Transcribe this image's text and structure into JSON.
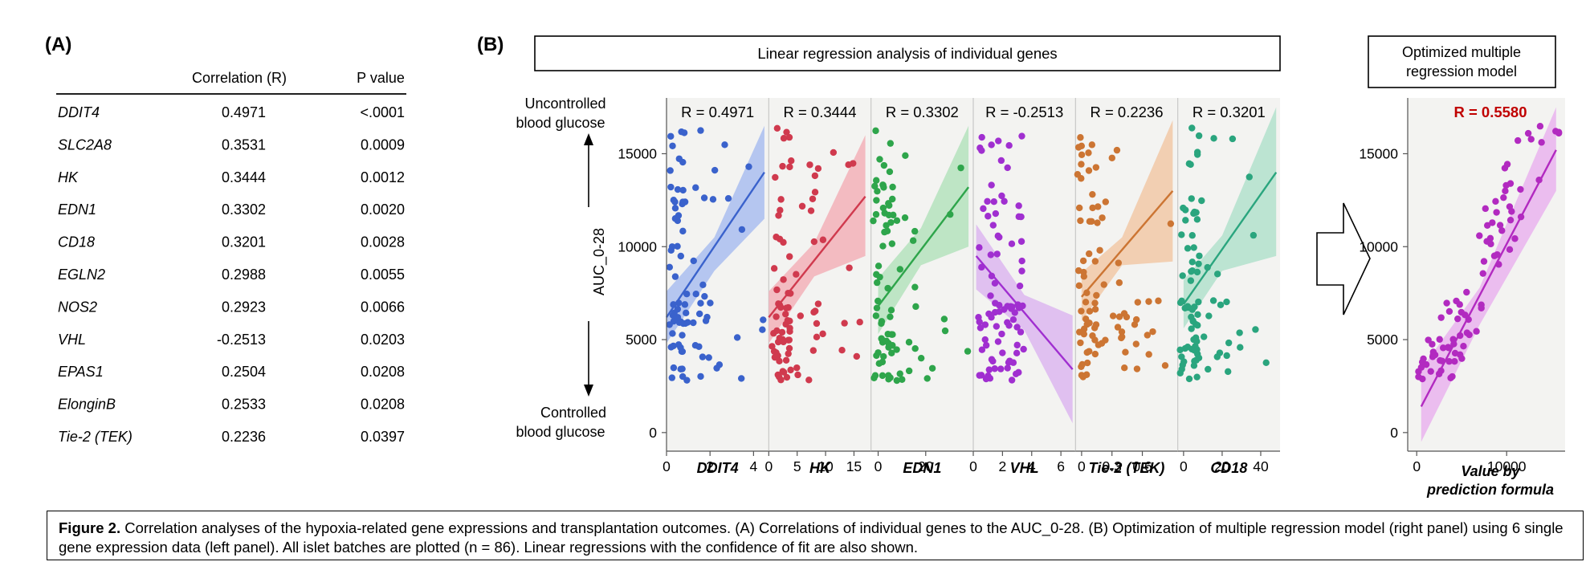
{
  "panel_a": {
    "label": "(A)",
    "headers": [
      "Correlation (R)",
      "P value"
    ],
    "rows": [
      {
        "gene": "DDIT4",
        "r": "0.4971",
        "p": "<.0001"
      },
      {
        "gene": "SLC2A8",
        "r": "0.3531",
        "p": "0.0009"
      },
      {
        "gene": "HK",
        "r": "0.3444",
        "p": "0.0012"
      },
      {
        "gene": "EDN1",
        "r": "0.3302",
        "p": "0.0020"
      },
      {
        "gene": "CD18",
        "r": "0.3201",
        "p": "0.0028"
      },
      {
        "gene": "EGLN2",
        "r": "0.2988",
        "p": "0.0055"
      },
      {
        "gene": "NOS2",
        "r": "0.2923",
        "p": "0.0066"
      },
      {
        "gene": "VHL",
        "r": "-0.2513",
        "p": "0.0203"
      },
      {
        "gene": "EPAS1",
        "r": "0.2504",
        "p": "0.0208"
      },
      {
        "gene": "ElonginB",
        "r": "0.2533",
        "p": "0.0208"
      },
      {
        "gene": "Tie-2 (TEK)",
        "r": "0.2236",
        "p": "0.0397"
      }
    ]
  },
  "panel_b": {
    "label": "(B)",
    "box_title": "Linear regression analysis of individual genes",
    "right_box_line1": "Optimized multiple",
    "right_box_line2": "regression model",
    "y_top_line1": "Uncontrolled",
    "y_top_line2": "blood glucose",
    "y_bottom_line1": "Controlled",
    "y_bottom_line2": "blood glucose",
    "right_xlabel_line1": "Value by",
    "right_xlabel_line2": "prediction formula"
  },
  "caption": {
    "bold": "Figure 2.",
    "text": " Correlation analyses of the hypoxia-related gene expressions and transplantation outcomes. (A) Correlations of individual genes to the AUC_0-28. (B) Optimization of multiple regression model (right panel) using 6 single gene expression data (left panel). All islet batches are plotted (n = 86). Linear regressions with the confidence of fit are also shown."
  },
  "chart_data": [
    {
      "type": "scatter",
      "ylabel": "AUC_0-28",
      "ylim": [
        -1000,
        18000
      ],
      "yticks": [
        "0",
        "5000",
        "10000",
        "15000"
      ],
      "ytick_values": [
        0,
        5000,
        10000,
        15000
      ],
      "grid": false,
      "panels": [
        {
          "name": "DDIT4",
          "r_label": "R = 0.4971",
          "color": "#3a62cc",
          "band": "#a9bdf0",
          "xlim": [
            0,
            4.7
          ],
          "xticks": [
            "0",
            "2",
            "4"
          ],
          "xtick_values": [
            0,
            2,
            4
          ],
          "fit": [
            [
              0,
              6200
            ],
            [
              4.5,
              14000
            ]
          ],
          "band_lo": [
            [
              0,
              4800
            ],
            [
              2.2,
              8700
            ],
            [
              4.5,
              11500
            ]
          ],
          "band_hi": [
            [
              0,
              7600
            ],
            [
              2.2,
              10500
            ],
            [
              4.5,
              16500
            ]
          ]
        },
        {
          "name": "HK",
          "r_label": "R = 0.3444",
          "color": "#d03a4e",
          "band": "#f2b0b8",
          "xlim": [
            0,
            18
          ],
          "xticks": [
            "0",
            "5",
            "10",
            "15"
          ],
          "xtick_values": [
            0,
            5,
            10,
            15
          ],
          "fit": [
            [
              0,
              6200
            ],
            [
              17,
              12700
            ]
          ],
          "band_lo": [
            [
              0,
              4800
            ],
            [
              8,
              8400
            ],
            [
              17,
              9500
            ]
          ],
          "band_hi": [
            [
              0,
              7600
            ],
            [
              8,
              10200
            ],
            [
              17,
              16000
            ]
          ]
        },
        {
          "name": "EDN1",
          "r_label": "R = 0.3302",
          "color": "#2ea54b",
          "band": "#b4e2bd",
          "xlim": [
            -3,
            40
          ],
          "xticks": [
            "0",
            "20"
          ],
          "xtick_values": [
            0,
            20
          ],
          "fit": [
            [
              0,
              6800
            ],
            [
              38,
              13200
            ]
          ],
          "band_lo": [
            [
              0,
              5300
            ],
            [
              18,
              9000
            ],
            [
              38,
              10000
            ]
          ],
          "band_hi": [
            [
              0,
              8300
            ],
            [
              18,
              11000
            ],
            [
              38,
              16500
            ]
          ]
        },
        {
          "name": "VHL",
          "r_label": "R = -0.2513",
          "color": "#a02fd0",
          "band": "#dcb6f0",
          "xlim": [
            0,
            7
          ],
          "xticks": [
            "0",
            "2",
            "4",
            "6"
          ],
          "xtick_values": [
            0,
            2,
            4,
            6
          ],
          "fit": [
            [
              0.2,
              9500
            ],
            [
              6.8,
              3400
            ]
          ],
          "band_lo": [
            [
              0.2,
              7700
            ],
            [
              3.5,
              5500
            ],
            [
              6.8,
              500
            ]
          ],
          "band_hi": [
            [
              0.2,
              11200
            ],
            [
              3.5,
              7400
            ],
            [
              6.8,
              6300
            ]
          ]
        },
        {
          "name": "Tie-2 (TEK)",
          "r_label": "R = 0.2236",
          "color": "#cc7533",
          "band": "#f1c8a7",
          "xlim": [
            -0.06,
            0.95
          ],
          "xticks": [
            "0",
            "0.3",
            "0.6"
          ],
          "xtick_values": [
            0,
            0.3,
            0.6
          ],
          "fit": [
            [
              0,
              7300
            ],
            [
              0.9,
              13000
            ]
          ],
          "band_lo": [
            [
              0,
              6000
            ],
            [
              0.4,
              9000
            ],
            [
              0.9,
              9200
            ]
          ],
          "band_hi": [
            [
              0,
              8600
            ],
            [
              0.4,
              10500
            ],
            [
              0.9,
              16800
            ]
          ]
        },
        {
          "name": "CD18",
          "r_label": "R = 0.3201",
          "color": "#2aa57e",
          "band": "#b1e0cd",
          "xlim": [
            -3,
            50
          ],
          "xticks": [
            "0",
            "20",
            "40"
          ],
          "xtick_values": [
            0,
            20,
            40
          ],
          "fit": [
            [
              0,
              6900
            ],
            [
              48,
              14000
            ]
          ],
          "band_lo": [
            [
              0,
              5600
            ],
            [
              20,
              8700
            ],
            [
              48,
              9500
            ]
          ],
          "band_hi": [
            [
              0,
              8200
            ],
            [
              20,
              10600
            ],
            [
              48,
              17500
            ]
          ]
        }
      ]
    },
    {
      "type": "scatter",
      "title": "",
      "r_label": "R = 0.5580",
      "xlabel": "Value by prediction formula",
      "xlim": [
        -1000,
        16500
      ],
      "ylim": [
        -1000,
        18000
      ],
      "xticks": [
        "0",
        "10000"
      ],
      "xtick_values": [
        0,
        10000
      ],
      "yticks": [
        "0",
        "5000",
        "10000",
        "15000"
      ],
      "ytick_values": [
        0,
        5000,
        10000,
        15000
      ],
      "color": "#b22ac0",
      "band": "#e9b3ee",
      "fit": [
        [
          500,
          1400
        ],
        [
          15500,
          15200
        ]
      ],
      "band_lo": [
        [
          500,
          -500
        ],
        [
          7000,
          5800
        ],
        [
          15500,
          13000
        ]
      ],
      "band_hi": [
        [
          500,
          3400
        ],
        [
          7000,
          7800
        ],
        [
          15500,
          17500
        ]
      ]
    }
  ]
}
